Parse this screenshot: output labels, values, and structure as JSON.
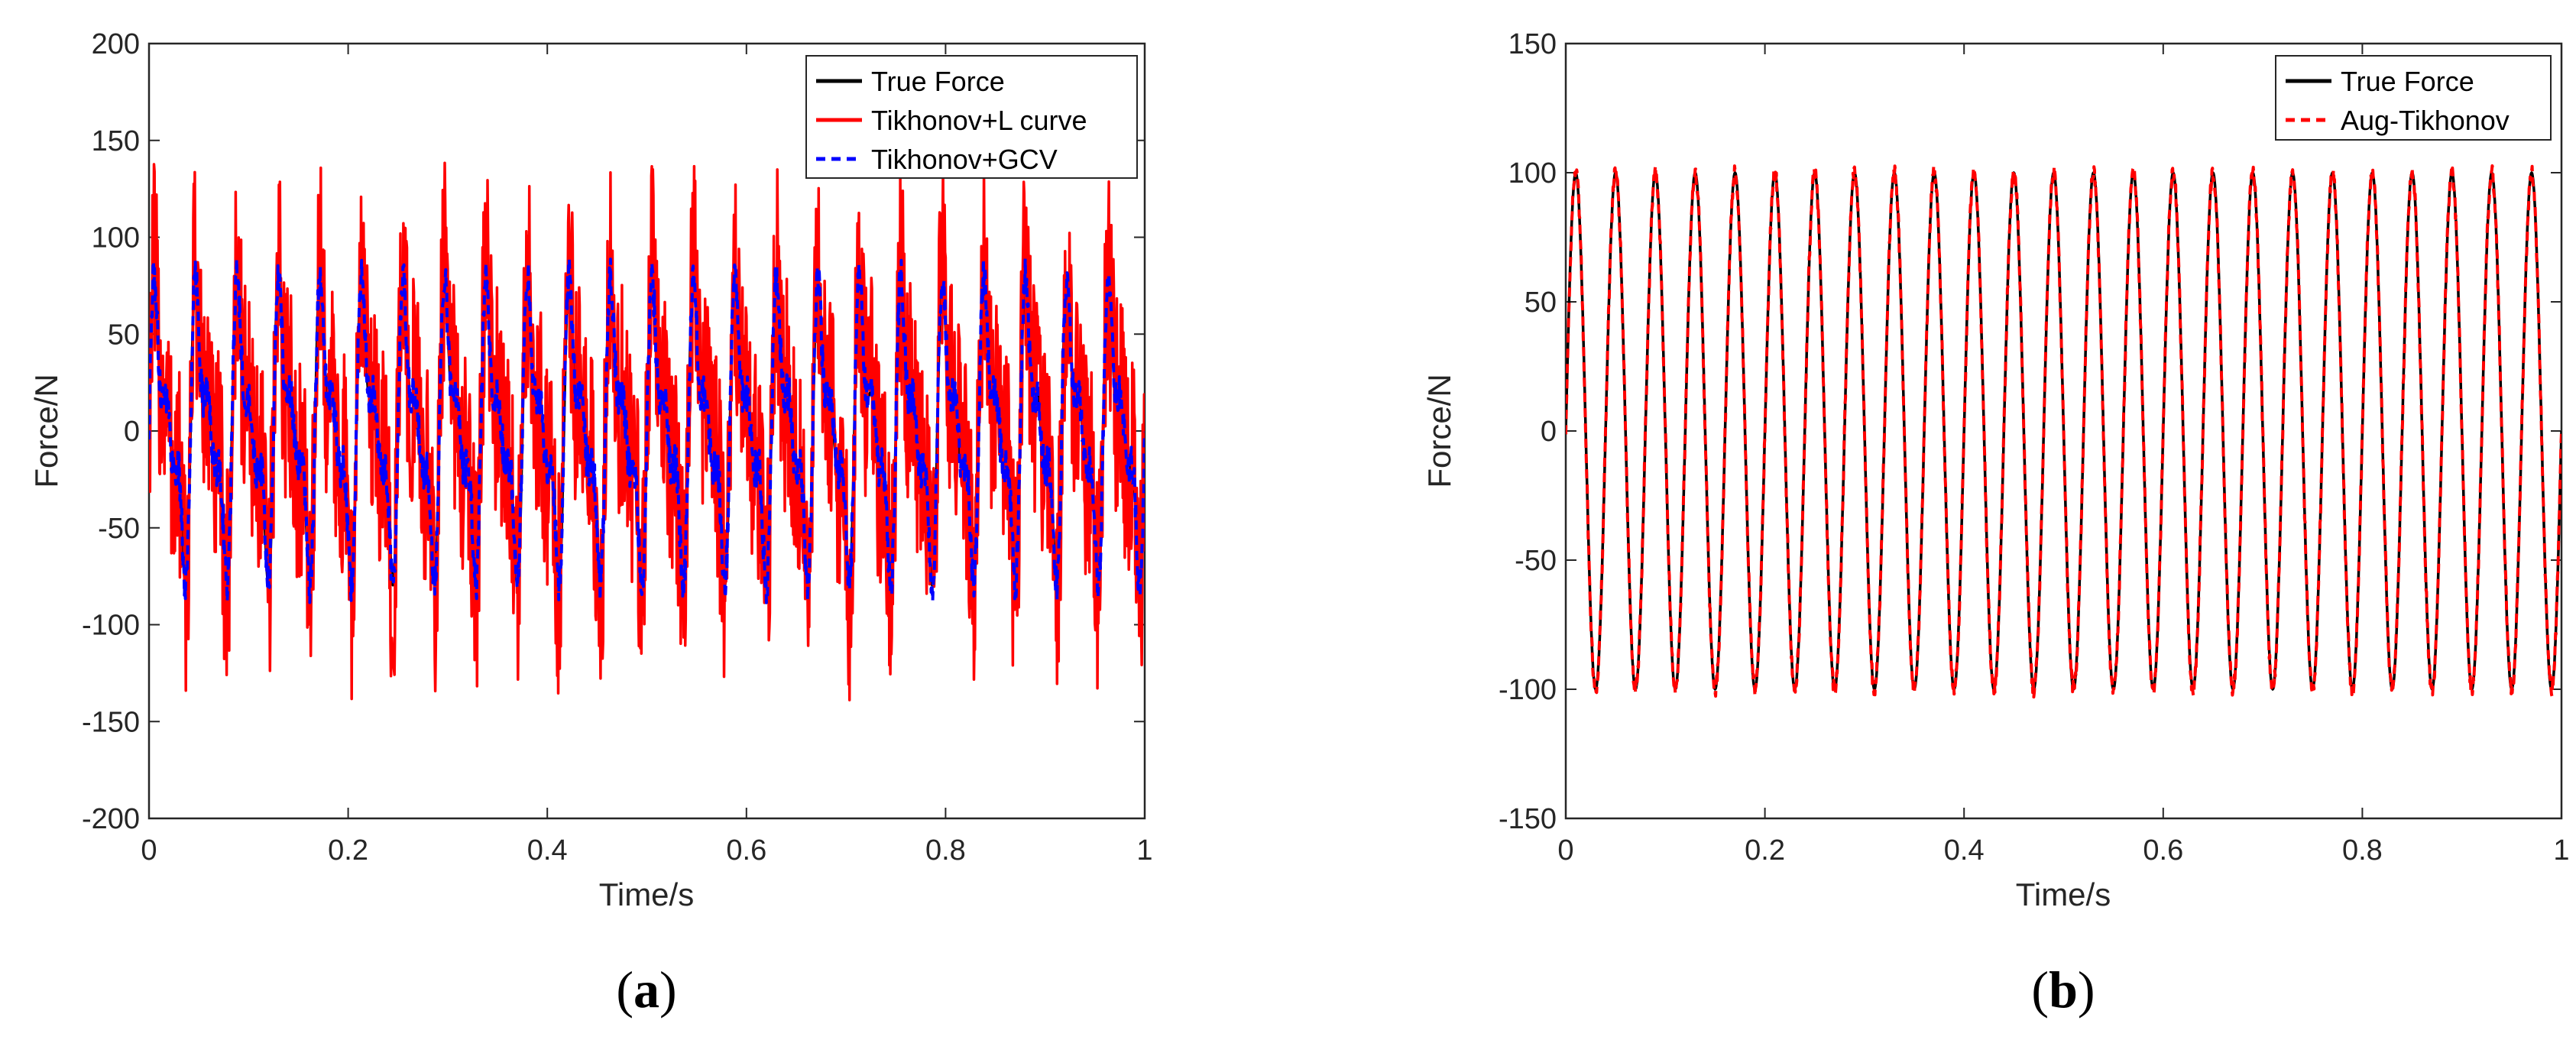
{
  "chart_data": [
    {
      "id": "a",
      "type": "line",
      "caption": "a",
      "xlabel": "Time/s",
      "ylabel": "Force/N",
      "xlim": [
        0,
        1
      ],
      "ylim": [
        -200,
        200
      ],
      "xticks": [
        0,
        0.2,
        0.4,
        0.6,
        0.8,
        1
      ],
      "xtick_labels": [
        "0",
        "0.2",
        "0.4",
        "0.6",
        "0.8",
        "1"
      ],
      "yticks": [
        -200,
        -150,
        -100,
        -50,
        0,
        50,
        100,
        150,
        200
      ],
      "ytick_labels": [
        "-200",
        "-150",
        "-100",
        "-50",
        "0",
        "50",
        "100",
        "150",
        "200"
      ],
      "legend_position": "top-right",
      "series": [
        {
          "name": "True Force",
          "color": "#000000",
          "style": "solid",
          "model": {
            "kind": "multisine",
            "amplitudes": [
              50,
              30,
              20
            ],
            "frequencies": [
              24,
              48,
              72
            ],
            "noise": 0
          }
        },
        {
          "name": "Tikhonov+L curve",
          "color": "#ff0000",
          "style": "solid",
          "model": {
            "kind": "multisine",
            "amplitudes": [
              50,
              30,
              20
            ],
            "frequencies": [
              24,
              48,
              72
            ],
            "noise": 60
          }
        },
        {
          "name": "Tikhonov+GCV",
          "color": "#0000ff",
          "style": "dashed",
          "model": {
            "kind": "multisine",
            "amplitudes": [
              50,
              30,
              20
            ],
            "frequencies": [
              24,
              48,
              72
            ],
            "noise": 10
          }
        }
      ]
    },
    {
      "id": "b",
      "type": "line",
      "caption": "b",
      "xlabel": "Time/s",
      "ylabel": "Force/N",
      "xlim": [
        0,
        1
      ],
      "ylim": [
        -150,
        150
      ],
      "xticks": [
        0,
        0.2,
        0.4,
        0.6,
        0.8,
        1
      ],
      "xtick_labels": [
        "0",
        "0.2",
        "0.4",
        "0.6",
        "0.8",
        "1"
      ],
      "yticks": [
        -150,
        -100,
        -50,
        0,
        50,
        100,
        150
      ],
      "ytick_labels": [
        "-150",
        "-100",
        "-50",
        "0",
        "50",
        "100",
        "150"
      ],
      "legend_position": "top-right",
      "series": [
        {
          "name": "True Force",
          "color": "#000000",
          "style": "solid",
          "model": {
            "kind": "multisine",
            "amplitudes": [
              100
            ],
            "frequencies": [
              25
            ],
            "noise": 0
          }
        },
        {
          "name": "Aug-Tikhonov",
          "color": "#ff0000",
          "style": "dashed",
          "model": {
            "kind": "multisine",
            "amplitudes": [
              100
            ],
            "frequencies": [
              25
            ],
            "noise": 3
          }
        }
      ]
    }
  ]
}
